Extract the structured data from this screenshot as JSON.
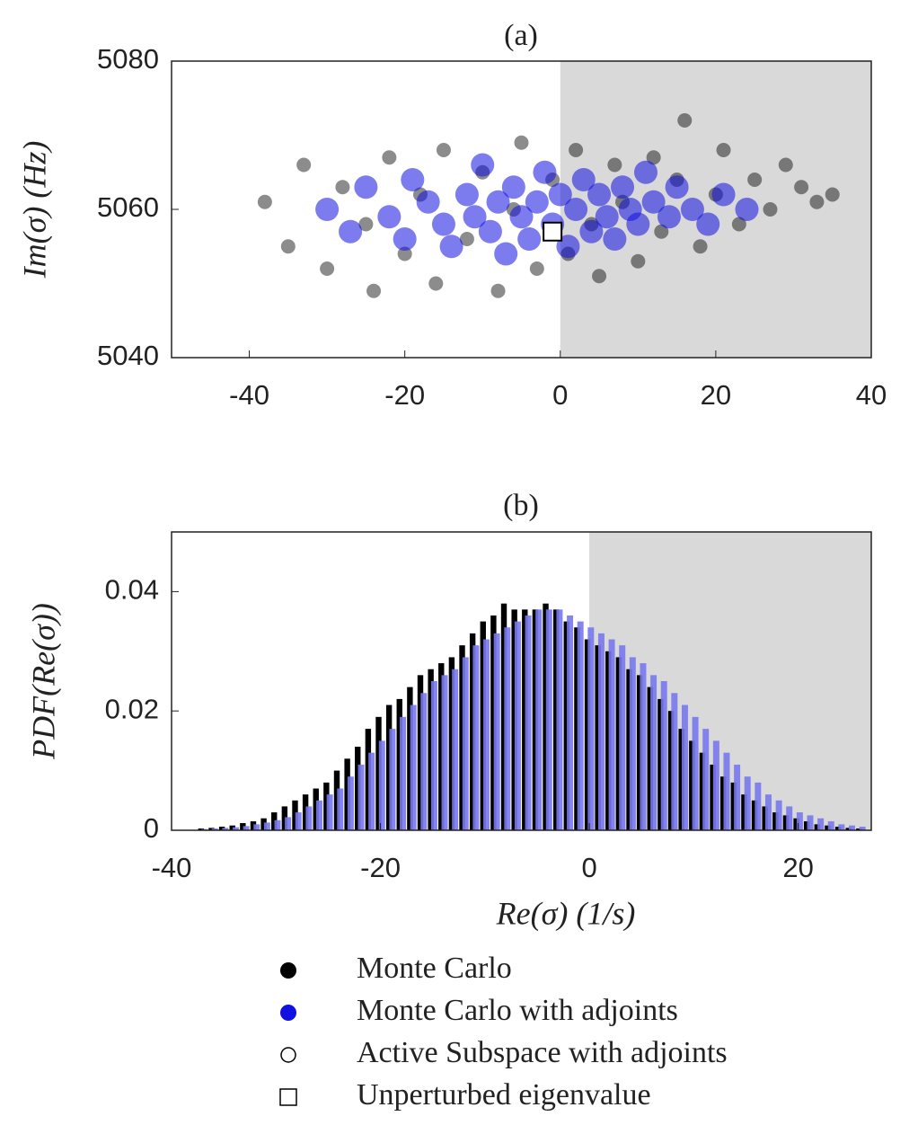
{
  "chart_data": [
    {
      "type": "scatter",
      "title": "(a)",
      "y_label": "Im(σ) (Hz)",
      "xlim": [
        -50,
        40
      ],
      "ylim": [
        5040,
        5080
      ],
      "xticks": [
        -40,
        -20,
        0,
        20,
        40
      ],
      "yticks": [
        5040,
        5060,
        5080
      ],
      "shade_from": 0,
      "series": [
        {
          "name": "Monte Carlo",
          "color": "#000000",
          "marker": "filled-circle",
          "x": [
            -38,
            -35,
            -33,
            -30,
            -28,
            -25,
            -24,
            -22,
            -20,
            -18,
            -16,
            -15,
            -12,
            -10,
            -8,
            -6,
            -5,
            -3,
            -1,
            1,
            2,
            4,
            5,
            7,
            8,
            10,
            12,
            13,
            15,
            16,
            18,
            20,
            21,
            23,
            25,
            27,
            29,
            31,
            33,
            35
          ],
          "y": [
            5061,
            5055,
            5066,
            5052,
            5063,
            5058,
            5049,
            5067,
            5054,
            5062,
            5050,
            5068,
            5056,
            5065,
            5049,
            5060,
            5069,
            5052,
            5064,
            5054,
            5068,
            5058,
            5051,
            5066,
            5061,
            5053,
            5067,
            5057,
            5064,
            5072,
            5055,
            5062,
            5068,
            5058,
            5064,
            5060,
            5066,
            5063,
            5061,
            5062
          ]
        },
        {
          "name": "Monte Carlo with adjoints",
          "color": "#1010e0",
          "marker": "filled-circle",
          "x": [
            -30,
            -27,
            -25,
            -22,
            -20,
            -19,
            -17,
            -15,
            -14,
            -12,
            -11,
            -10,
            -9,
            -8,
            -7,
            -6,
            -5,
            -4,
            -3,
            -2,
            -1,
            0,
            1,
            2,
            3,
            4,
            5,
            6,
            7,
            8,
            9,
            10,
            11,
            12,
            14,
            15,
            17,
            19,
            21,
            24
          ],
          "y": [
            5060,
            5057,
            5063,
            5059,
            5056,
            5064,
            5061,
            5058,
            5055,
            5062,
            5059,
            5066,
            5057,
            5061,
            5054,
            5063,
            5059,
            5056,
            5061,
            5065,
            5058,
            5062,
            5055,
            5060,
            5064,
            5057,
            5062,
            5059,
            5056,
            5063,
            5060,
            5058,
            5065,
            5061,
            5059,
            5063,
            5060,
            5058,
            5062,
            5060
          ]
        },
        {
          "name": "Active Subspace with adjoints",
          "color": "#000000",
          "marker": "open-circle",
          "x": [],
          "y": []
        },
        {
          "name": "Unperturbed eigenvalue",
          "color": "#000000",
          "marker": "open-square",
          "x": [
            -1
          ],
          "y": [
            5057
          ]
        }
      ]
    },
    {
      "type": "histogram",
      "title": "(b)",
      "y_label": "PDF(Re(σ))",
      "x_label": "Re(σ) (1/s)",
      "xlim": [
        -40,
        27
      ],
      "ylim": [
        0,
        0.05
      ],
      "xticks": [
        -40,
        -20,
        0,
        20
      ],
      "yticks": [
        0,
        0.02,
        0.04
      ],
      "shade_from": 0,
      "bins": [
        -37.5,
        -36.5,
        -35.5,
        -34.5,
        -33.5,
        -32.5,
        -31.5,
        -30.5,
        -29.5,
        -28.5,
        -27.5,
        -26.5,
        -25.5,
        -24.5,
        -23.5,
        -22.5,
        -21.5,
        -20.5,
        -19.5,
        -18.5,
        -17.5,
        -16.5,
        -15.5,
        -14.5,
        -13.5,
        -12.5,
        -11.5,
        -10.5,
        -9.5,
        -8.5,
        -7.5,
        -6.5,
        -5.5,
        -4.5,
        -3.5,
        -2.5,
        -1.5,
        -0.5,
        0.5,
        1.5,
        2.5,
        3.5,
        4.5,
        5.5,
        6.5,
        7.5,
        8.5,
        9.5,
        10.5,
        11.5,
        12.5,
        13.5,
        14.5,
        15.5,
        16.5,
        17.5,
        18.5,
        19.5,
        20.5,
        21.5,
        22.5,
        23.5,
        24.5,
        25.5,
        26.5
      ],
      "series": [
        {
          "name": "Monte Carlo",
          "color": "#000000",
          "values": [
            0.0003,
            0.0004,
            0.0006,
            0.0008,
            0.0012,
            0.0015,
            0.002,
            0.003,
            0.004,
            0.005,
            0.006,
            0.007,
            0.008,
            0.01,
            0.012,
            0.014,
            0.017,
            0.019,
            0.021,
            0.022,
            0.024,
            0.026,
            0.027,
            0.028,
            0.029,
            0.031,
            0.033,
            0.035,
            0.036,
            0.038,
            0.037,
            0.037,
            0.037,
            0.038,
            0.037,
            0.035,
            0.034,
            0.032,
            0.031,
            0.03,
            0.029,
            0.027,
            0.026,
            0.024,
            0.022,
            0.02,
            0.017,
            0.015,
            0.013,
            0.011,
            0.009,
            0.008,
            0.006,
            0.005,
            0.004,
            0.003,
            0.0025,
            0.002,
            0.0015,
            0.001,
            0.0008,
            0.0006,
            0.0004,
            0.0003
          ]
        },
        {
          "name": "Monte Carlo with adjoints",
          "color": "#7878ee",
          "values": [
            0.0002,
            0.0003,
            0.0004,
            0.0005,
            0.0007,
            0.001,
            0.0013,
            0.0017,
            0.0022,
            0.003,
            0.004,
            0.005,
            0.006,
            0.007,
            0.009,
            0.011,
            0.013,
            0.015,
            0.017,
            0.019,
            0.021,
            0.023,
            0.025,
            0.026,
            0.027,
            0.029,
            0.031,
            0.032,
            0.033,
            0.034,
            0.035,
            0.036,
            0.037,
            0.037,
            0.037,
            0.036,
            0.035,
            0.034,
            0.033,
            0.032,
            0.031,
            0.029,
            0.028,
            0.026,
            0.025,
            0.023,
            0.021,
            0.019,
            0.017,
            0.015,
            0.013,
            0.011,
            0.009,
            0.008,
            0.006,
            0.005,
            0.004,
            0.003,
            0.0025,
            0.002,
            0.0015,
            0.001,
            0.0008,
            0.0006
          ]
        }
      ]
    }
  ]
}
